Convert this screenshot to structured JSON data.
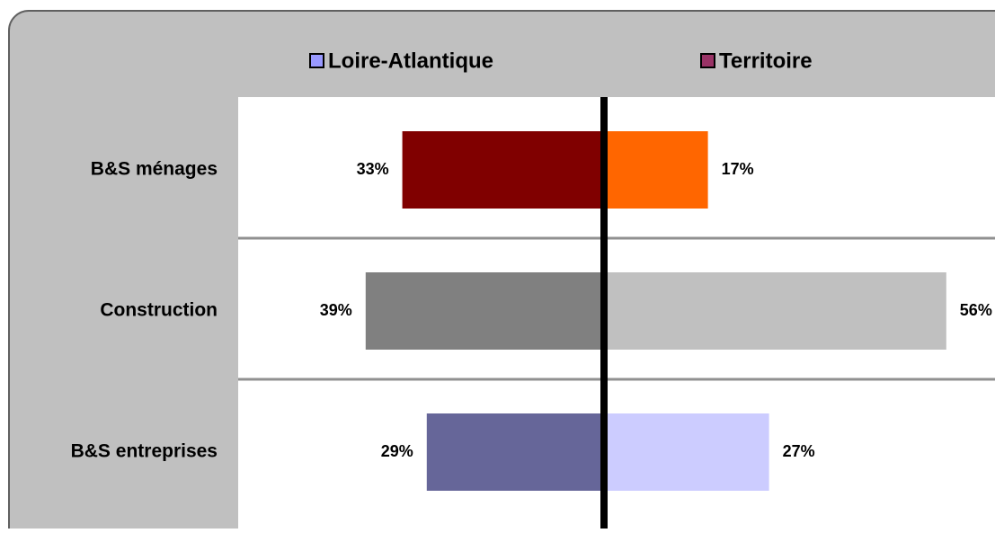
{
  "chart_data": {
    "type": "butterfly",
    "categories": [
      "B&S ménages",
      "Construction",
      "B&S entreprises"
    ],
    "series": [
      {
        "name": "Loire-Atlantique",
        "color": "#9999ff",
        "colors": [
          "#800000",
          "#808080",
          "#666699"
        ],
        "values": [
          33,
          39,
          29
        ],
        "value_labels": [
          "33%",
          "39%",
          "29%"
        ]
      },
      {
        "name": "Territoire",
        "color": "#993366",
        "colors": [
          "#ff6600",
          "#c0c0c0",
          "#ccccff"
        ],
        "values": [
          17,
          56,
          27
        ],
        "value_labels": [
          "17%",
          "56%",
          "27%"
        ]
      }
    ],
    "xlim": [
      0,
      60
    ]
  }
}
